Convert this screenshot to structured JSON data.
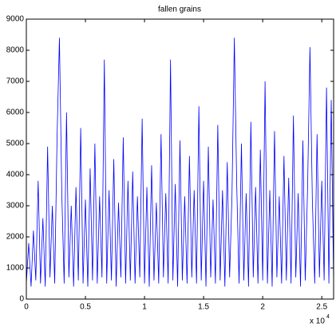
{
  "chart_data": {
    "type": "line",
    "title": "fallen grains",
    "x": [
      0,
      200,
      400,
      600,
      800,
      1000,
      1200,
      1400,
      1600,
      1800,
      2000,
      2200,
      2400,
      2600,
      2800,
      3000,
      3200,
      3400,
      3600,
      3800,
      4000,
      4200,
      4400,
      4600,
      4800,
      5000,
      5200,
      5400,
      5600,
      5800,
      6000,
      6200,
      6400,
      6600,
      6800,
      7000,
      7200,
      7400,
      7600,
      7800,
      8000,
      8200,
      8400,
      8600,
      8800,
      9000,
      9200,
      9400,
      9600,
      9800,
      10000,
      10200,
      10400,
      10600,
      10800,
      11000,
      11200,
      11400,
      11600,
      11800,
      12000,
      12200,
      12400,
      12600,
      12800,
      13000,
      13200,
      13400,
      13600,
      13800,
      14000,
      14200,
      14400,
      14600,
      14800,
      15000,
      15200,
      15400,
      15600,
      15800,
      16000,
      16200,
      16400,
      16600,
      16800,
      17000,
      17200,
      17400,
      17600,
      17800,
      18000,
      18200,
      18400,
      18600,
      18800,
      19000,
      19200,
      19400,
      19600,
      19800,
      20000,
      20200,
      20400,
      20600,
      20800,
      21000,
      21200,
      21400,
      21600,
      21800,
      22000,
      22200,
      22400,
      22600,
      22800,
      23000,
      23200,
      23400,
      23600,
      23800,
      24000,
      24200,
      24400,
      24600,
      24800,
      25000,
      25200,
      25400,
      25600,
      25800,
      26000
    ],
    "series": [
      {
        "name": "fallen grains",
        "color": "#0000ff",
        "values": [
          500,
          1800,
          400,
          2200,
          600,
          3800,
          500,
          2600,
          400,
          4900,
          700,
          3000,
          500,
          5200,
          8400,
          3400,
          500,
          6000,
          700,
          3000,
          400,
          3600,
          600,
          5500,
          500,
          3200,
          400,
          4200,
          600,
          5000,
          500,
          3300,
          700,
          7700,
          500,
          3500,
          600,
          4500,
          400,
          3100,
          700,
          5200,
          500,
          3800,
          600,
          4100,
          500,
          3300,
          700,
          5800,
          500,
          3600,
          400,
          4300,
          600,
          3100,
          500,
          5300,
          700,
          3400,
          500,
          7700,
          600,
          3700,
          400,
          5100,
          600,
          3300,
          500,
          4600,
          700,
          3500,
          500,
          6200,
          600,
          3800,
          400,
          4900,
          700,
          3200,
          500,
          5600,
          600,
          3500,
          400,
          4400,
          700,
          3300,
          8400,
          3700,
          500,
          5000,
          600,
          3400,
          400,
          5700,
          700,
          3600,
          500,
          4800,
          600,
          7000,
          500,
          3500,
          400,
          5400,
          700,
          3300,
          500,
          4600,
          600,
          3900,
          500,
          5900,
          700,
          3400,
          400,
          5100,
          600,
          3600,
          8100,
          3200,
          500,
          5300,
          700,
          3800,
          600,
          6800,
          500,
          6400,
          500
        ]
      }
    ],
    "xlim": [
      0,
      26000
    ],
    "xticks": [
      0,
      {
        "value": 5000,
        "label": "0.5"
      },
      {
        "value": 10000,
        "label": "1"
      },
      {
        "value": 15000,
        "label": "1.5"
      },
      {
        "value": 20000,
        "label": "2"
      },
      {
        "value": 25000,
        "label": "2.5"
      }
    ],
    "x_multiplier": "x 10",
    "x_multiplier_exponent": "4",
    "ylim": [
      0,
      9000
    ],
    "yticks": [
      0,
      1000,
      2000,
      3000,
      4000,
      5000,
      6000,
      7000,
      8000,
      9000
    ],
    "grid": false
  }
}
